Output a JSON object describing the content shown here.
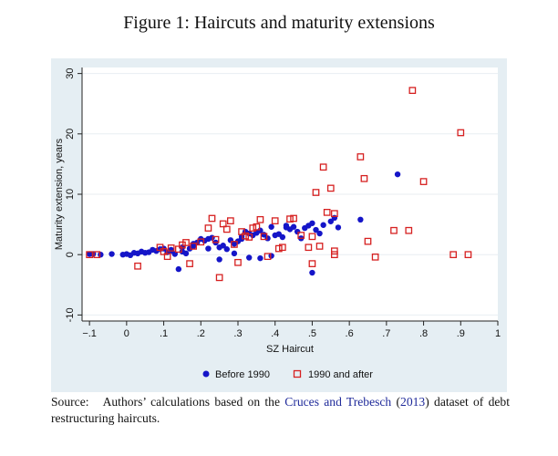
{
  "figure": {
    "title": "Figure 1: Haircuts and maturity extensions"
  },
  "source": {
    "prefix": "Source:",
    "text_before_link": "Authors’ calculations based on the",
    "link_text": "Cruces and Trebesch",
    "year_link": "2013",
    "text_after": "dataset of debt restructuring haircuts."
  },
  "colors": {
    "before": "#1515c8",
    "after": "#d62020",
    "panel_bg": "#e5eef3",
    "plot_bg": "#ffffff",
    "grid": "#e8eef2"
  },
  "chart_data": {
    "type": "scatter",
    "title": "",
    "xlabel": "SZ Haircut",
    "ylabel": "Maturity extension, years",
    "xlim": [
      -0.12,
      1.0
    ],
    "ylim": [
      -11,
      31
    ],
    "xticks": [
      -0.1,
      0,
      0.1,
      0.2,
      0.3,
      0.4,
      0.5,
      0.6,
      0.7,
      0.8,
      0.9,
      1
    ],
    "xtick_labels": [
      "-.1",
      "0",
      ".1",
      ".2",
      ".3",
      ".4",
      ".5",
      ".6",
      ".7",
      ".8",
      ".9",
      "1"
    ],
    "yticks": [
      -10,
      0,
      10,
      20,
      30
    ],
    "ytick_labels": [
      "-10",
      "0",
      "10",
      "20",
      "30"
    ],
    "grid": true,
    "legend_position": "bottom",
    "series": [
      {
        "name": "Before 1990",
        "marker": "filled-circle",
        "color": "#1515c8",
        "points": [
          [
            -0.1,
            0.1
          ],
          [
            -0.09,
            0.1
          ],
          [
            -0.07,
            0.0
          ],
          [
            -0.04,
            0.1
          ],
          [
            -0.01,
            0.0
          ],
          [
            0.0,
            0.1
          ],
          [
            0.01,
            -0.1
          ],
          [
            0.02,
            0.3
          ],
          [
            0.03,
            0.2
          ],
          [
            0.04,
            0.5
          ],
          [
            0.05,
            0.3
          ],
          [
            0.06,
            0.4
          ],
          [
            0.07,
            0.8
          ],
          [
            0.08,
            0.6
          ],
          [
            0.09,
            0.9
          ],
          [
            0.1,
            1.0
          ],
          [
            0.11,
            0.4
          ],
          [
            0.12,
            0.8
          ],
          [
            0.13,
            0.1
          ],
          [
            0.14,
            -2.4
          ],
          [
            0.15,
            0.5
          ],
          [
            0.16,
            0.2
          ],
          [
            0.15,
            1.2
          ],
          [
            0.17,
            1.0
          ],
          [
            0.18,
            1.4
          ],
          [
            0.19,
            2.0
          ],
          [
            0.2,
            2.6
          ],
          [
            0.21,
            2.3
          ],
          [
            0.22,
            2.6
          ],
          [
            0.23,
            2.8
          ],
          [
            0.24,
            2.0
          ],
          [
            0.25,
            1.2
          ],
          [
            0.26,
            1.5
          ],
          [
            0.27,
            0.9
          ],
          [
            0.28,
            2.4
          ],
          [
            0.29,
            1.8
          ],
          [
            0.3,
            2.2
          ],
          [
            0.31,
            3.0
          ],
          [
            0.32,
            3.8
          ],
          [
            0.33,
            3.5
          ],
          [
            0.34,
            3.2
          ],
          [
            0.35,
            3.6
          ],
          [
            0.36,
            4.0
          ],
          [
            0.37,
            3.3
          ],
          [
            0.38,
            2.7
          ],
          [
            0.39,
            4.6
          ],
          [
            0.4,
            3.2
          ],
          [
            0.41,
            3.4
          ],
          [
            0.42,
            2.9
          ],
          [
            0.43,
            4.5
          ],
          [
            0.44,
            4.2
          ],
          [
            0.45,
            4.6
          ],
          [
            0.46,
            3.8
          ],
          [
            0.47,
            2.7
          ],
          [
            0.48,
            4.4
          ],
          [
            0.49,
            4.8
          ],
          [
            0.5,
            5.2
          ],
          [
            0.51,
            4.1
          ],
          [
            0.52,
            3.5
          ],
          [
            0.53,
            4.9
          ],
          [
            0.55,
            5.5
          ],
          [
            0.56,
            6.1
          ],
          [
            0.57,
            4.5
          ],
          [
            0.5,
            -3.0
          ],
          [
            0.25,
            -0.8
          ],
          [
            0.29,
            0.2
          ],
          [
            0.33,
            -0.5
          ],
          [
            0.36,
            -0.6
          ],
          [
            0.39,
            -0.2
          ],
          [
            0.63,
            5.8
          ],
          [
            0.73,
            13.3
          ],
          [
            0.43,
            4.8
          ],
          [
            0.12,
            0.6
          ],
          [
            0.18,
            1.8
          ],
          [
            0.22,
            1.0
          ],
          [
            0.31,
            2.6
          ]
        ]
      },
      {
        "name": "1990 and after",
        "marker": "hollow-square",
        "color": "#d62020",
        "points": [
          [
            -0.1,
            0.0
          ],
          [
            -0.08,
            0.0
          ],
          [
            0.03,
            -1.9
          ],
          [
            0.09,
            1.2
          ],
          [
            0.1,
            0.5
          ],
          [
            0.11,
            -0.3
          ],
          [
            0.12,
            1.1
          ],
          [
            0.14,
            0.9
          ],
          [
            0.15,
            1.6
          ],
          [
            0.16,
            2.0
          ],
          [
            0.17,
            -1.5
          ],
          [
            0.18,
            1.4
          ],
          [
            0.2,
            2.1
          ],
          [
            0.22,
            4.4
          ],
          [
            0.23,
            6.0
          ],
          [
            0.24,
            2.5
          ],
          [
            0.25,
            -3.8
          ],
          [
            0.26,
            5.1
          ],
          [
            0.27,
            4.2
          ],
          [
            0.28,
            5.6
          ],
          [
            0.29,
            1.7
          ],
          [
            0.3,
            -1.3
          ],
          [
            0.31,
            3.8
          ],
          [
            0.32,
            3.1
          ],
          [
            0.33,
            2.9
          ],
          [
            0.34,
            4.4
          ],
          [
            0.35,
            4.6
          ],
          [
            0.36,
            5.8
          ],
          [
            0.37,
            3.0
          ],
          [
            0.38,
            -0.3
          ],
          [
            0.4,
            5.6
          ],
          [
            0.41,
            1.0
          ],
          [
            0.42,
            1.2
          ],
          [
            0.44,
            5.9
          ],
          [
            0.45,
            6.0
          ],
          [
            0.47,
            3.2
          ],
          [
            0.49,
            1.2
          ],
          [
            0.5,
            3.0
          ],
          [
            0.5,
            -1.5
          ],
          [
            0.51,
            10.3
          ],
          [
            0.52,
            1.4
          ],
          [
            0.53,
            14.5
          ],
          [
            0.54,
            7.0
          ],
          [
            0.55,
            11.0
          ],
          [
            0.56,
            6.8
          ],
          [
            0.56,
            0.6
          ],
          [
            0.56,
            0.0
          ],
          [
            0.63,
            16.2
          ],
          [
            0.64,
            12.6
          ],
          [
            0.65,
            2.2
          ],
          [
            0.67,
            -0.4
          ],
          [
            0.72,
            4.0
          ],
          [
            0.76,
            4.0
          ],
          [
            0.77,
            27.2
          ],
          [
            0.8,
            12.1
          ],
          [
            0.88,
            0.0
          ],
          [
            0.9,
            20.2
          ],
          [
            0.92,
            0.0
          ]
        ]
      }
    ]
  }
}
